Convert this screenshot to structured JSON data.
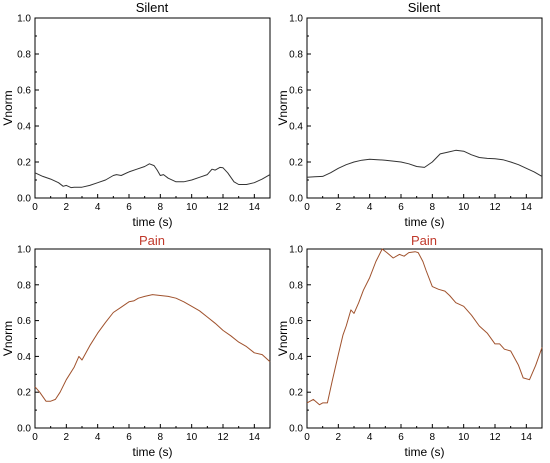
{
  "chart_data": [
    {
      "type": "line",
      "title": "Silent",
      "xlabel": "time (s)",
      "ylabel": "Vnorm",
      "xlim": [
        0,
        15
      ],
      "ylim": [
        0,
        1.0
      ],
      "xticks": [
        "0",
        "2",
        "4",
        "6",
        "8",
        "10",
        "12",
        "14"
      ],
      "yticks": [
        "0.0",
        "0.2",
        "0.4",
        "0.6",
        "0.8",
        "1.0"
      ],
      "color": "#333333",
      "title_color": "#000000",
      "grid": false,
      "series": [
        {
          "x": [
            0,
            0.5,
            1,
            1.5,
            1.8,
            2,
            2.3,
            2.5,
            3,
            3.5,
            4,
            4.5,
            5,
            5.2,
            5.5,
            6,
            6.5,
            7,
            7.3,
            7.6,
            7.8,
            8,
            8.2,
            8.5,
            9,
            9.5,
            10,
            10.5,
            11,
            11.3,
            11.5,
            11.8,
            12,
            12.3,
            12.7,
            13,
            13.5,
            14,
            14.5,
            15
          ],
          "y": [
            0.14,
            0.12,
            0.105,
            0.085,
            0.065,
            0.07,
            0.058,
            0.06,
            0.06,
            0.07,
            0.085,
            0.1,
            0.125,
            0.13,
            0.125,
            0.145,
            0.16,
            0.175,
            0.19,
            0.18,
            0.155,
            0.125,
            0.13,
            0.11,
            0.09,
            0.09,
            0.1,
            0.115,
            0.13,
            0.16,
            0.155,
            0.17,
            0.168,
            0.14,
            0.09,
            0.075,
            0.075,
            0.085,
            0.105,
            0.13
          ]
        }
      ]
    },
    {
      "type": "line",
      "title": "Silent",
      "xlabel": "time (s)",
      "ylabel": "Vnorm",
      "xlim": [
        0,
        15
      ],
      "ylim": [
        0,
        1.0
      ],
      "xticks": [
        "0",
        "2",
        "4",
        "6",
        "8",
        "10",
        "12",
        "14"
      ],
      "yticks": [
        "0.0",
        "0.2",
        "0.4",
        "0.6",
        "0.8",
        "1.0"
      ],
      "color": "#333333",
      "title_color": "#000000",
      "grid": false,
      "series": [
        {
          "x": [
            0,
            0.5,
            1,
            1.5,
            2,
            2.5,
            3,
            3.5,
            4,
            4.5,
            5,
            5.5,
            6,
            6.5,
            7,
            7.5,
            8,
            8.5,
            9,
            9.5,
            10,
            10.5,
            11,
            11.5,
            12,
            12.5,
            13,
            13.5,
            14,
            14.5,
            15
          ],
          "y": [
            0.115,
            0.118,
            0.12,
            0.14,
            0.165,
            0.185,
            0.2,
            0.21,
            0.215,
            0.213,
            0.21,
            0.205,
            0.2,
            0.19,
            0.175,
            0.17,
            0.2,
            0.245,
            0.255,
            0.265,
            0.26,
            0.24,
            0.225,
            0.22,
            0.218,
            0.213,
            0.2,
            0.185,
            0.165,
            0.145,
            0.12
          ]
        }
      ]
    },
    {
      "type": "line",
      "title": "Pain",
      "xlabel": "time (s)",
      "ylabel": "Vnorm",
      "xlim": [
        0,
        15
      ],
      "ylim": [
        0,
        1.0
      ],
      "xticks": [
        "0",
        "2",
        "4",
        "6",
        "8",
        "10",
        "12",
        "14"
      ],
      "yticks": [
        "0.0",
        "0.2",
        "0.4",
        "0.6",
        "0.8",
        "1.0"
      ],
      "color": "#a0522d",
      "title_color": "#c0392b",
      "grid": false,
      "series": [
        {
          "x": [
            0,
            0.3,
            0.7,
            1,
            1.3,
            1.6,
            2,
            2.5,
            2.8,
            3,
            3.5,
            4,
            4.5,
            5,
            5.5,
            6,
            6.3,
            6.6,
            7,
            7.5,
            8,
            8.5,
            9,
            9.5,
            10,
            10.5,
            11,
            11.5,
            12,
            12.5,
            13,
            13.5,
            14,
            14.5,
            15
          ],
          "y": [
            0.23,
            0.2,
            0.15,
            0.15,
            0.16,
            0.2,
            0.27,
            0.34,
            0.4,
            0.38,
            0.46,
            0.53,
            0.59,
            0.645,
            0.675,
            0.705,
            0.71,
            0.725,
            0.735,
            0.745,
            0.74,
            0.735,
            0.725,
            0.705,
            0.68,
            0.655,
            0.62,
            0.585,
            0.545,
            0.515,
            0.48,
            0.455,
            0.42,
            0.41,
            0.37
          ]
        }
      ]
    },
    {
      "type": "line",
      "title": "Pain",
      "xlabel": "time (s)",
      "ylabel": "Vnorm",
      "xlim": [
        0,
        15
      ],
      "ylim": [
        0,
        1.0
      ],
      "xticks": [
        "0",
        "2",
        "4",
        "6",
        "8",
        "10",
        "12",
        "14"
      ],
      "yticks": [
        "0.0",
        "0.2",
        "0.4",
        "0.6",
        "0.8",
        "1.0"
      ],
      "color": "#a0522d",
      "title_color": "#c0392b",
      "grid": false,
      "series": [
        {
          "x": [
            0,
            0.4,
            0.8,
            1,
            1.3,
            1.6,
            2,
            2.3,
            2.5,
            2.8,
            3,
            3.3,
            3.6,
            4,
            4.4,
            4.8,
            5.1,
            5.5,
            5.9,
            6.2,
            6.5,
            6.9,
            7.1,
            7.4,
            7.6,
            8,
            8.4,
            8.8,
            9.1,
            9.5,
            10,
            10.5,
            11,
            11.5,
            12,
            12.3,
            12.6,
            13,
            13.5,
            13.8,
            14.2,
            14.6,
            15
          ],
          "y": [
            0.14,
            0.16,
            0.13,
            0.14,
            0.14,
            0.26,
            0.41,
            0.52,
            0.57,
            0.66,
            0.64,
            0.7,
            0.77,
            0.84,
            0.93,
            1.0,
            0.98,
            0.95,
            0.97,
            0.96,
            0.98,
            0.985,
            0.98,
            0.93,
            0.88,
            0.79,
            0.775,
            0.765,
            0.74,
            0.7,
            0.68,
            0.63,
            0.57,
            0.53,
            0.47,
            0.47,
            0.44,
            0.43,
            0.35,
            0.28,
            0.27,
            0.35,
            0.45
          ]
        }
      ]
    }
  ]
}
